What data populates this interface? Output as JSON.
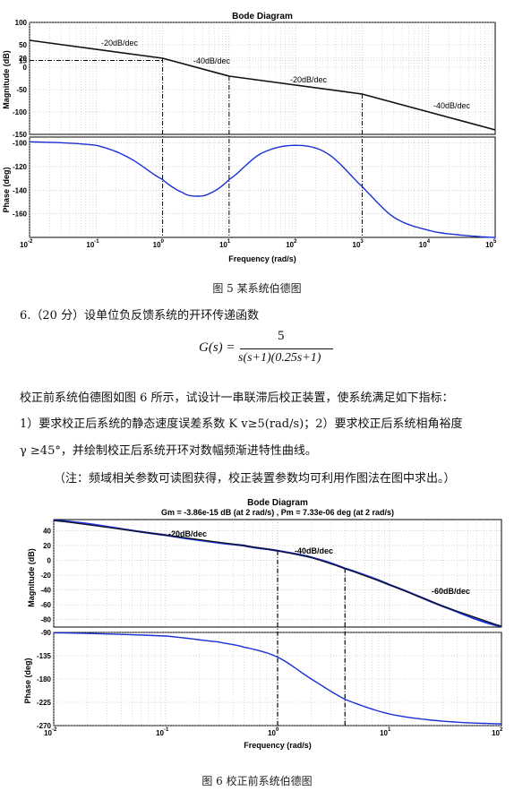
{
  "fig5": {
    "title": "Bode Diagram",
    "mag_ylabel": "Magnitude (dB)",
    "phase_ylabel": "Phase (deg)",
    "xlabel": "Frequency  (rad/s)",
    "mag_ticks": [
      "100",
      "50",
      "20",
      "15",
      "0",
      "-50",
      "-100",
      "-150"
    ],
    "phase_ticks": [
      "-100",
      "-120",
      "-140",
      "-160"
    ],
    "x_ticks": [
      "10",
      "10",
      "10",
      "10",
      "10",
      "10",
      "10",
      "10"
    ],
    "x_exponents": [
      "-2",
      "-1",
      "0",
      "1",
      "2",
      "3",
      "4",
      "5"
    ],
    "annotations": [
      "-20dB/dec",
      "-40dB/dec",
      "-20dB/dec",
      "-40dB/dec"
    ],
    "caption": "图 5  某系统伯德图"
  },
  "question": {
    "line1": "6.（20 分）设单位负反馈系统的开环传递函数",
    "formula_lhs": "G(s) =",
    "formula_num": "5",
    "formula_den": "s(s+1)(0.25s+1)",
    "line2": "校正前系统伯德图如图 6 所示，试设计一串联滞后校正装置，使系统满足如下指标：",
    "line3": "1）要求校正后系统的静态速度误差系数 K v≥5(rad/s)；2）要求校正后系统相角裕度",
    "line4": "γ ≥45°，并绘制校正后系统开环对数幅频渐进特性曲线。",
    "note": "（注：频域相关参数可读图获得，校正装置参数均可利用作图法在图中求出。）"
  },
  "fig6": {
    "title": "Bode Diagram",
    "subtitle": "Gm = -3.86e-15 dB (at 2 rad/s) ,  Pm = 7.33e-06 deg (at 2 rad/s)",
    "mag_ylabel": "Magnitude (dB)",
    "phase_ylabel": "Phase (deg)",
    "xlabel": "Frequency  (rad/s)",
    "mag_ticks": [
      "40",
      "20",
      "0",
      "-20",
      "-40",
      "-60",
      "-80"
    ],
    "phase_ticks": [
      "-90",
      "-135",
      "-180",
      "-225",
      "-270"
    ],
    "x_ticks": [
      "10",
      "10",
      "10",
      "10",
      "10"
    ],
    "x_exponents": [
      "-2",
      "-1",
      "0",
      "1",
      "2"
    ],
    "annotations": [
      "-20dB/dec",
      "-40dB/dec",
      "-60dB/dec"
    ],
    "caption": "图 6 校正前系统伯德图"
  },
  "chart_data": [
    {
      "type": "line",
      "title": "Bode Diagram",
      "xlabel": "Frequency  (rad/s)",
      "ylabel": "Magnitude (dB)",
      "xscale": "log",
      "xlim": [
        0.01,
        100000
      ],
      "ylim": [
        -150,
        100
      ],
      "grid": true,
      "series": [
        {
          "x": [
            0.01,
            1,
            10,
            1000,
            100000
          ],
          "y": [
            60,
            20,
            -20,
            -60,
            -140
          ]
        }
      ]
    },
    {
      "type": "line",
      "ylabel": "Phase (deg)",
      "xscale": "log",
      "xlim": [
        0.01,
        100000
      ],
      "ylim": [
        -180,
        -95
      ],
      "grid": true,
      "series": [
        {
          "x": [
            0.01,
            0.1,
            0.3,
            1,
            2,
            3,
            5,
            10,
            30,
            100,
            300,
            1000,
            3000,
            10000,
            30000,
            100000
          ],
          "y": [
            -99,
            -102,
            -112,
            -131,
            -142,
            -145,
            -143,
            -131,
            -109,
            -102,
            -109,
            -137,
            -163,
            -174,
            -178,
            -180
          ]
        }
      ]
    },
    {
      "type": "line",
      "title": "Bode Diagram",
      "xlabel": "Frequency  (rad/s)",
      "ylabel": "Magnitude (dB)",
      "xscale": "log",
      "xlim": [
        0.01,
        100
      ],
      "ylim": [
        -90,
        55
      ],
      "grid": true,
      "series": [
        {
          "x": [
            0.01,
            0.1,
            0.5,
            1,
            2,
            4,
            10,
            30,
            100
          ],
          "y": [
            54,
            34,
            20,
            13,
            4,
            -11,
            -33,
            -62,
            -89
          ]
        }
      ]
    },
    {
      "type": "line",
      "ylabel": "Phase (deg)",
      "xscale": "log",
      "xlim": [
        0.01,
        100
      ],
      "ylim": [
        -270,
        -90
      ],
      "grid": true,
      "series": [
        {
          "x": [
            0.01,
            0.1,
            0.3,
            0.5,
            1,
            2,
            4,
            10,
            30,
            100
          ],
          "y": [
            -90.7,
            -96.9,
            -108.6,
            -118.3,
            -137.7,
            -180,
            -219.2,
            -247.7,
            -261.5,
            -266.6
          ]
        }
      ]
    }
  ]
}
